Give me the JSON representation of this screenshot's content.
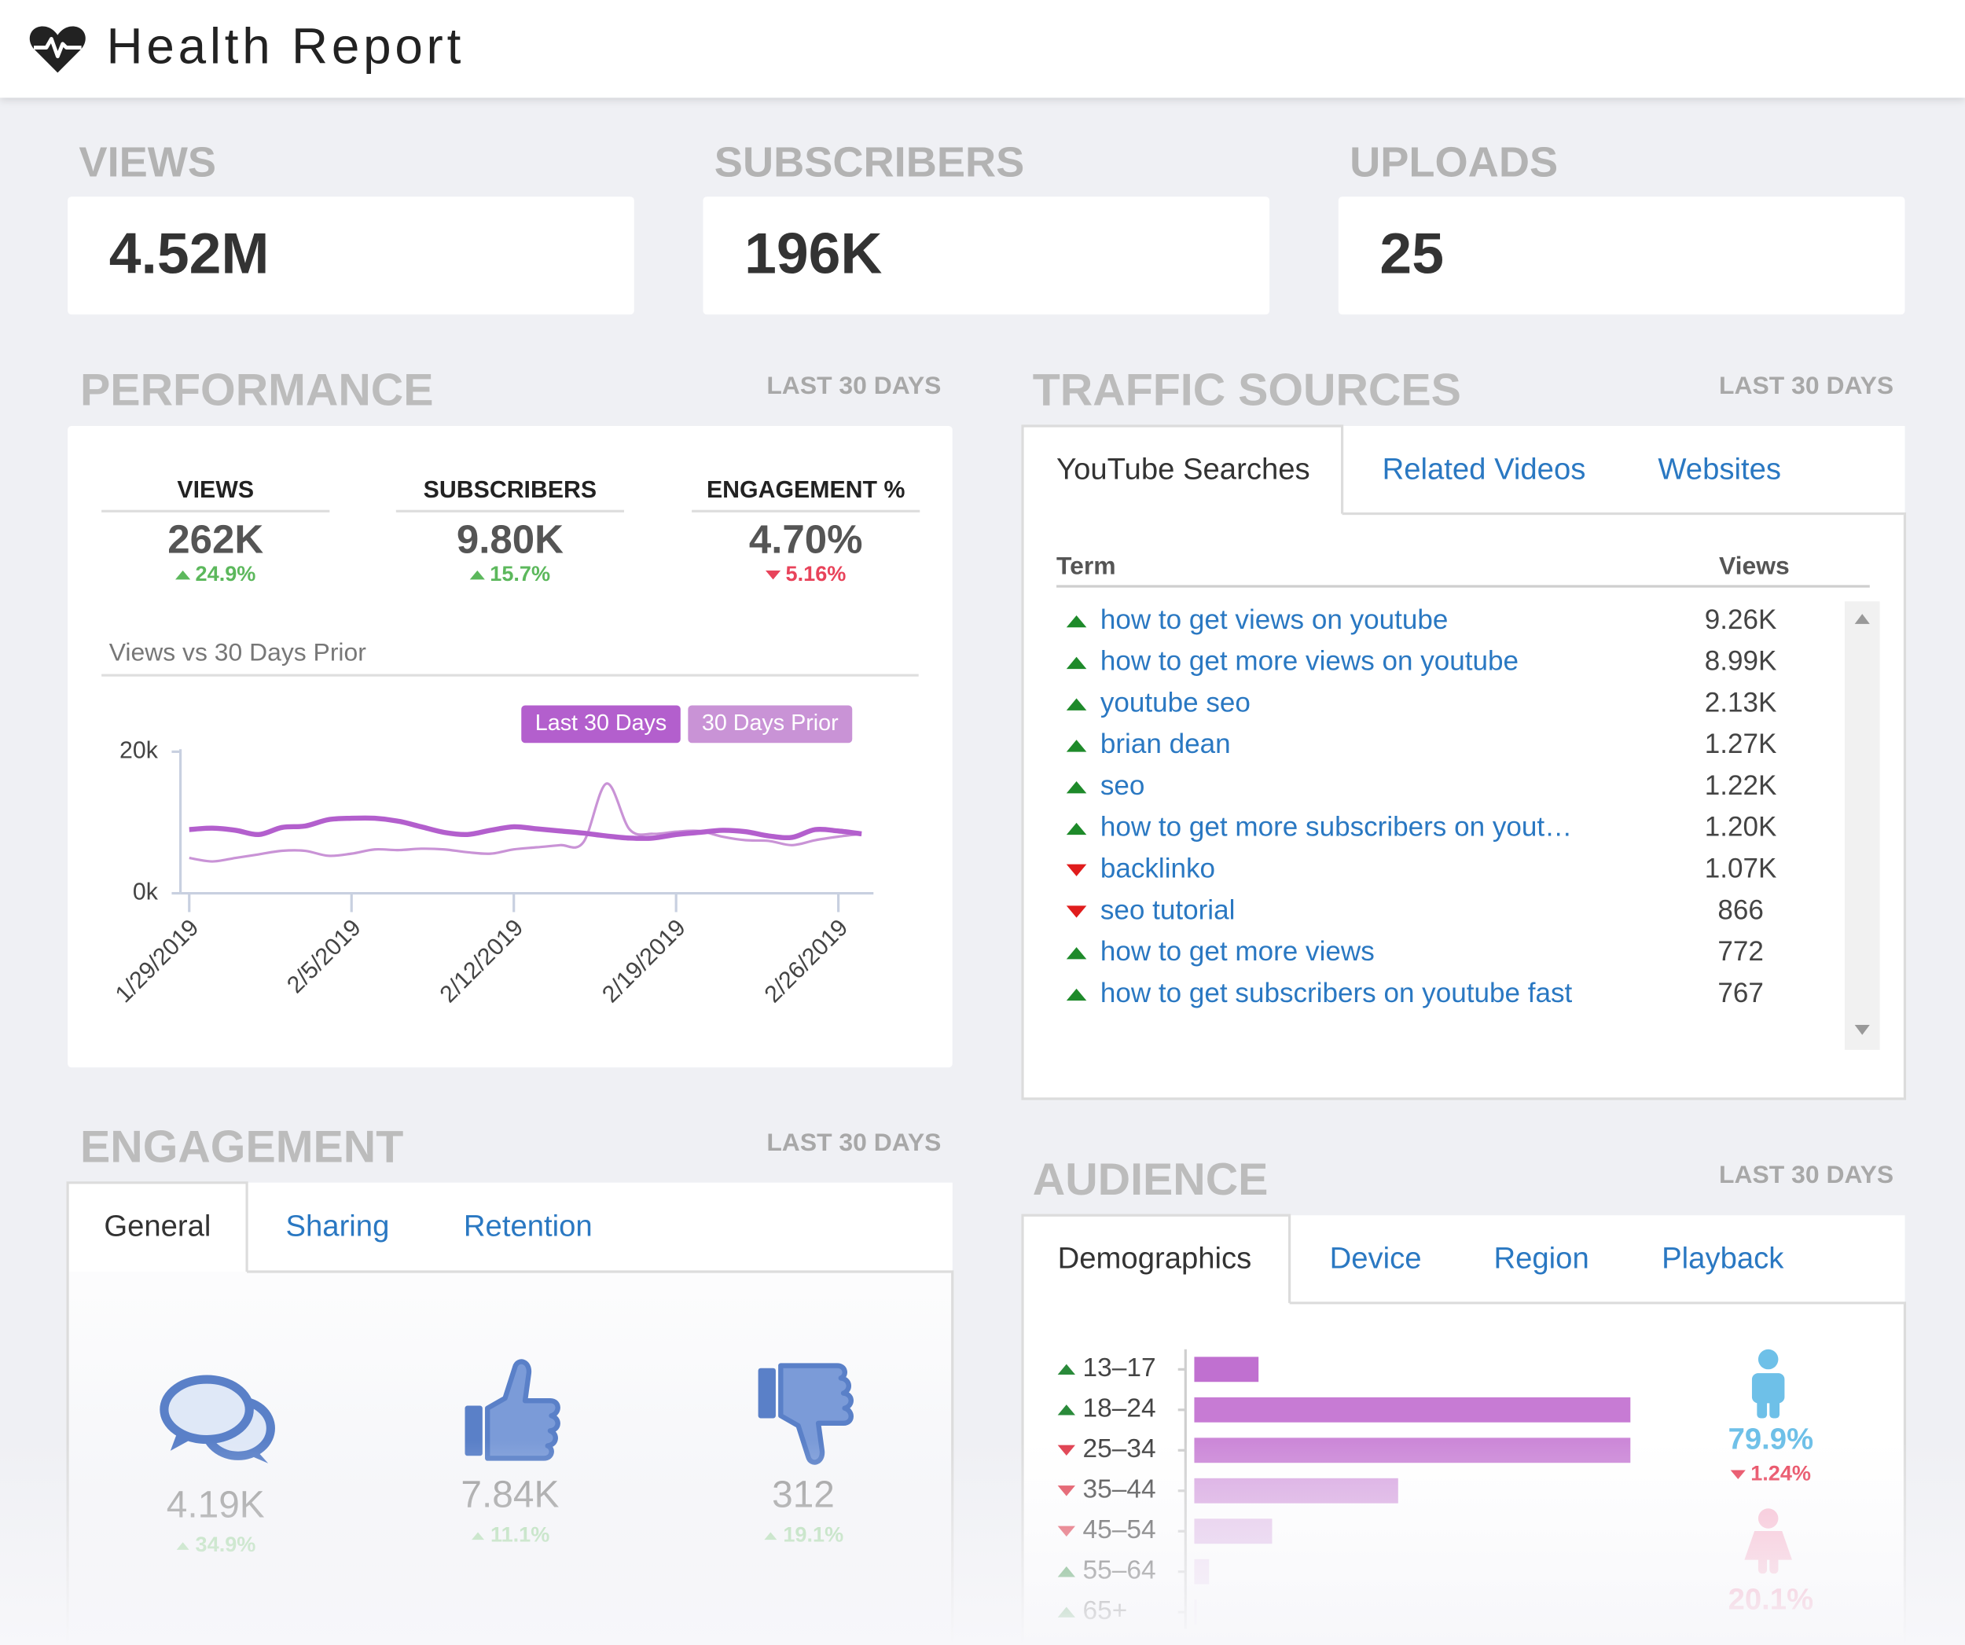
{
  "header": {
    "title": "Health Report"
  },
  "kpis": [
    {
      "label": "VIEWS",
      "value": "4.52M"
    },
    {
      "label": "SUBSCRIBERS",
      "value": "196K"
    },
    {
      "label": "UPLOADS",
      "value": "25"
    }
  ],
  "performance": {
    "title": "PERFORMANCE",
    "period": "LAST 30 DAYS",
    "metrics": [
      {
        "label": "VIEWS",
        "value": "262K",
        "change": "24.9%",
        "trend": "up"
      },
      {
        "label": "SUBSCRIBERS",
        "value": "9.80K",
        "change": "15.7%",
        "trend": "up"
      },
      {
        "label": "ENGAGEMENT %",
        "value": "4.70%",
        "change": "5.16%",
        "trend": "down"
      }
    ]
  },
  "traffic_sources": {
    "title": "TRAFFIC SOURCES",
    "period": "LAST 30 DAYS",
    "tabs": [
      "YouTube Searches",
      "Related Videos",
      "Websites"
    ],
    "active_tab": 0,
    "columns": [
      "Term",
      "Views"
    ],
    "rows": [
      {
        "term": "how to get views on youtube",
        "views": "9.26K",
        "trend": "up"
      },
      {
        "term": "how to get more views on youtube",
        "views": "8.99K",
        "trend": "up"
      },
      {
        "term": "youtube seo",
        "views": "2.13K",
        "trend": "up"
      },
      {
        "term": "brian dean",
        "views": "1.27K",
        "trend": "up"
      },
      {
        "term": "seo",
        "views": "1.22K",
        "trend": "up"
      },
      {
        "term": "how to get more subscribers on yout…",
        "views": "1.20K",
        "trend": "up"
      },
      {
        "term": "backlinko",
        "views": "1.07K",
        "trend": "down"
      },
      {
        "term": "seo tutorial",
        "views": "866",
        "trend": "down"
      },
      {
        "term": "how to get more views",
        "views": "772",
        "trend": "up"
      },
      {
        "term": "how to get subscribers on youtube fast",
        "views": "767",
        "trend": "up"
      }
    ]
  },
  "engagement": {
    "title": "ENGAGEMENT",
    "period": "LAST 30 DAYS",
    "tabs": [
      "General",
      "Sharing",
      "Retention"
    ],
    "active_tab": 0,
    "items": [
      {
        "value": "4.19K",
        "change": "34.9%",
        "trend": "up"
      },
      {
        "value": "7.84K",
        "change": "11.1%",
        "trend": "up"
      },
      {
        "value": "312",
        "change": "19.1%",
        "trend": "up"
      }
    ]
  },
  "audience": {
    "title": "AUDIENCE",
    "period": "LAST 30 DAYS",
    "tabs": [
      "Demographics",
      "Device",
      "Region",
      "Playback"
    ],
    "active_tab": 0,
    "gender": [
      {
        "value": "79.9%",
        "change": "1.24%",
        "trend": "down"
      },
      {
        "value": "20.1%"
      }
    ]
  },
  "chart_data": [
    {
      "type": "line",
      "title": "Views vs 30 Days Prior",
      "categories": [
        "1/29/2019",
        null,
        null,
        null,
        null,
        null,
        null,
        "2/5/2019",
        null,
        null,
        null,
        null,
        null,
        null,
        "2/12/2019",
        null,
        null,
        null,
        null,
        null,
        null,
        "2/19/2019",
        null,
        null,
        null,
        null,
        null,
        null,
        "2/26/2019",
        null
      ],
      "series": [
        {
          "name": "Last 30 Days",
          "color": "#b35fcd",
          "values": [
            9.0,
            9.2,
            8.9,
            8.3,
            9.3,
            9.5,
            10.4,
            10.6,
            10.6,
            10.2,
            9.4,
            8.6,
            8.3,
            8.9,
            9.4,
            9.1,
            8.8,
            8.5,
            8.1,
            7.8,
            7.8,
            8.3,
            8.6,
            8.9,
            8.7,
            8.1,
            7.9,
            9.0,
            8.8,
            8.4
          ]
        },
        {
          "name": "30 Days Prior",
          "color": "#c993d6",
          "values": [
            5.0,
            4.5,
            5.0,
            5.5,
            6.0,
            6.0,
            5.3,
            5.6,
            6.2,
            6.1,
            6.3,
            6.2,
            5.8,
            5.6,
            6.2,
            6.5,
            6.8,
            7.2,
            15.5,
            9.0,
            8.4,
            8.7,
            8.8,
            8.0,
            7.5,
            7.4,
            6.8,
            7.5,
            8.0,
            8.4
          ]
        }
      ],
      "ylim": [
        0,
        20
      ],
      "yticks": [
        {
          "value": 0,
          "label": "0k"
        },
        {
          "value": 20,
          "label": "20k"
        }
      ]
    },
    {
      "type": "bar",
      "orientation": "horizontal",
      "categories": [
        "13–17",
        "18–24",
        "25–34",
        "35–44",
        "45–54",
        "55–64",
        "65+"
      ],
      "values": [
        5.2,
        35.3,
        35.3,
        16.5,
        6.3,
        1.2,
        0.2
      ],
      "colors": [
        "#c070d0",
        "#c77bd4",
        "#cc88d8",
        "#d9a8e2",
        "#e3c2ea",
        "#eed9f2",
        "#f3e6f6"
      ],
      "trends": [
        "up",
        "up",
        "down",
        "down",
        "down",
        "up",
        "up"
      ],
      "xlim": [
        0,
        35.3
      ]
    }
  ]
}
